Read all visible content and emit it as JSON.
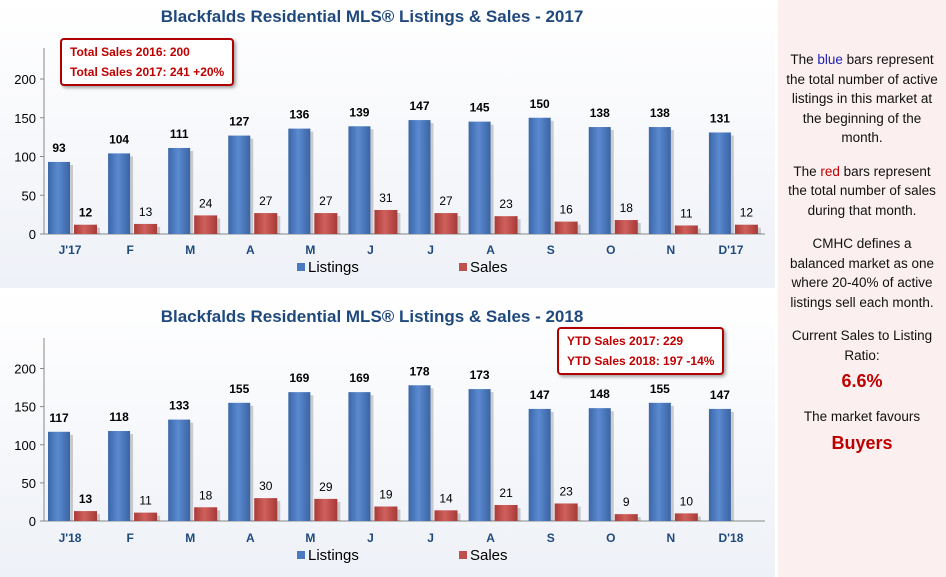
{
  "chart_data": [
    {
      "type": "bar",
      "title": "Blackfalds Residential MLS® Listings & Sales - 2017",
      "categories": [
        "J'17",
        "F",
        "M",
        "A",
        "M",
        "J",
        "J",
        "A",
        "S",
        "O",
        "N",
        "D'17"
      ],
      "series": [
        {
          "name": "Listings",
          "color": "#4a7abf",
          "values": [
            93,
            104,
            111,
            127,
            136,
            139,
            147,
            145,
            150,
            138,
            138,
            131
          ]
        },
        {
          "name": "Sales",
          "color": "#c0504d",
          "values": [
            12,
            13,
            24,
            27,
            27,
            31,
            27,
            23,
            16,
            18,
            11,
            12
          ]
        }
      ],
      "yticks": [
        0,
        50,
        100,
        150,
        200
      ],
      "ylim": [
        0,
        240
      ],
      "legend_position": "bottom",
      "annotation": [
        "Total Sales 2016: 200",
        "Total Sales 2017: 241  +20%"
      ]
    },
    {
      "type": "bar",
      "title": "Blackfalds Residential MLS® Listings & Sales - 2018",
      "categories": [
        "J'18",
        "F",
        "M",
        "A",
        "M",
        "J",
        "J",
        "A",
        "S",
        "O",
        "N",
        "D'18"
      ],
      "series": [
        {
          "name": "Listings",
          "color": "#4a7abf",
          "values": [
            117,
            118,
            133,
            155,
            169,
            169,
            178,
            173,
            147,
            148,
            155,
            147
          ]
        },
        {
          "name": "Sales",
          "color": "#c0504d",
          "values": [
            13,
            11,
            18,
            30,
            29,
            19,
            14,
            21,
            23,
            9,
            10,
            null
          ]
        }
      ],
      "yticks": [
        0,
        50,
        100,
        150,
        200
      ],
      "ylim": [
        0,
        240
      ],
      "legend_position": "bottom",
      "annotation": [
        "YTD Sales 2017: 229",
        "YTD Sales 2018: 197  -14%"
      ]
    }
  ],
  "sidebar": {
    "p1_pre": "The ",
    "p1_color_word": "blue",
    "p1_post": " bars represent the total number of active listings in this market at the beginning of the month.",
    "p2_pre": "The ",
    "p2_color_word": "red",
    "p2_post": " bars represent the total number of sales during that month.",
    "p3": "CMHC defines a balanced market as one where 20-40% of active listings sell each month.",
    "p4_label": "Current Sales to Listing Ratio:",
    "p4_value": "6.6%",
    "p5_label": "The market favours",
    "p5_value": "Buyers"
  }
}
